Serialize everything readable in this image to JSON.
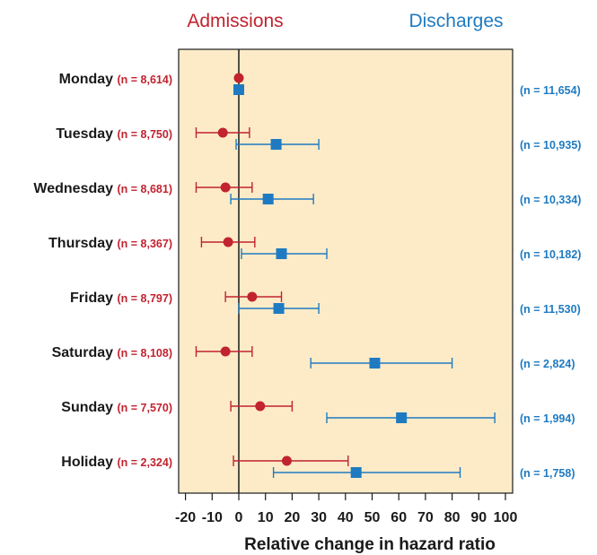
{
  "chart_data": {
    "type": "scatter",
    "xlabel": "Relative change in hazard ratio",
    "xlim": [
      -22,
      102
    ],
    "xticks": [
      -20,
      -10,
      0,
      10,
      20,
      30,
      40,
      50,
      60,
      70,
      80,
      90,
      100
    ],
    "xtick_labels": [
      "-20",
      "-10",
      "0",
      "10",
      "20",
      "30",
      "40",
      "50",
      "60",
      "70",
      "80",
      "90",
      "100"
    ],
    "reference_line": 0,
    "background": "#fdebc8",
    "categories": [
      "Monday",
      "Tuesday",
      "Wednesday",
      "Thursday",
      "Friday",
      "Saturday",
      "Sunday",
      "Holiday"
    ],
    "series": [
      {
        "name": "Admissions",
        "color": "#c1232f",
        "marker": "circle",
        "n_labels": [
          "(n = 8,614)",
          "(n = 8,750)",
          "(n = 8,681)",
          "(n = 8,367)",
          "(n = 8,797)",
          "(n = 8,108)",
          "(n = 7,570)",
          "(n = 2,324)"
        ],
        "values": [
          0,
          -6,
          -5,
          -4,
          5,
          -5,
          8,
          18
        ],
        "lower": [
          null,
          -16,
          -16,
          -14,
          -5,
          -16,
          -3,
          -2
        ],
        "upper": [
          null,
          4,
          5,
          6,
          16,
          5,
          20,
          41
        ]
      },
      {
        "name": "Discharges",
        "color": "#1f7bc1",
        "marker": "square",
        "n_labels": [
          "(n = 11,654)",
          "(n = 10,935)",
          "(n = 10,334)",
          "(n = 10,182)",
          "(n = 11,530)",
          "(n = 2,824)",
          "(n = 1,994)",
          "(n = 1,758)"
        ],
        "values": [
          0,
          14,
          11,
          16,
          15,
          51,
          61,
          44
        ],
        "lower": [
          null,
          -1,
          -3,
          1,
          0,
          27,
          33,
          13
        ],
        "upper": [
          null,
          30,
          28,
          33,
          30,
          80,
          96,
          83
        ]
      }
    ]
  }
}
